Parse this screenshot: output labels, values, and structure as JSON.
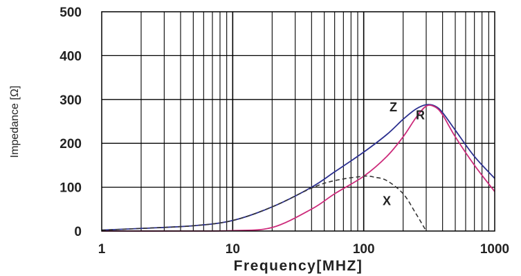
{
  "chart_data": {
    "type": "line",
    "title": "",
    "xlabel": "Frequency[MHZ]",
    "ylabel": "Impedance [Ω]",
    "xscale": "log",
    "xlim": [
      1,
      1000
    ],
    "ylim": [
      0,
      500
    ],
    "xticks": [
      1,
      10,
      100,
      1000
    ],
    "xtick_labels": [
      "1",
      "10",
      "100",
      "1000"
    ],
    "yticks": [
      0,
      100,
      200,
      300,
      400,
      500
    ],
    "ytick_labels": [
      "0",
      "100",
      "200",
      "300",
      "400",
      "500"
    ],
    "grid": true,
    "legend": "none",
    "series": [
      {
        "name": "Z",
        "color": "#2b2f8f",
        "style": "solid",
        "x": [
          1,
          2,
          5,
          10,
          20,
          40,
          60,
          100,
          150,
          200,
          250,
          300,
          350,
          400,
          500,
          700,
          1000
        ],
        "y": [
          2,
          6,
          12,
          24,
          55,
          100,
          135,
          180,
          220,
          255,
          278,
          288,
          285,
          270,
          230,
          170,
          120
        ]
      },
      {
        "name": "R",
        "color": "#cc2a7a",
        "style": "solid",
        "x": [
          1,
          5,
          10,
          20,
          40,
          60,
          100,
          150,
          200,
          250,
          300,
          350,
          400,
          500,
          700,
          1000
        ],
        "y": [
          0,
          0,
          1,
          8,
          50,
          85,
          125,
          170,
          215,
          258,
          285,
          283,
          265,
          215,
          150,
          90
        ]
      },
      {
        "name": "X",
        "color": "#333333",
        "style": "dashed",
        "x": [
          1,
          2,
          5,
          10,
          20,
          40,
          60,
          100,
          120,
          150,
          200,
          250,
          300
        ],
        "y": [
          2,
          6,
          12,
          24,
          55,
          98,
          115,
          125,
          123,
          115,
          85,
          40,
          0
        ]
      }
    ]
  }
}
